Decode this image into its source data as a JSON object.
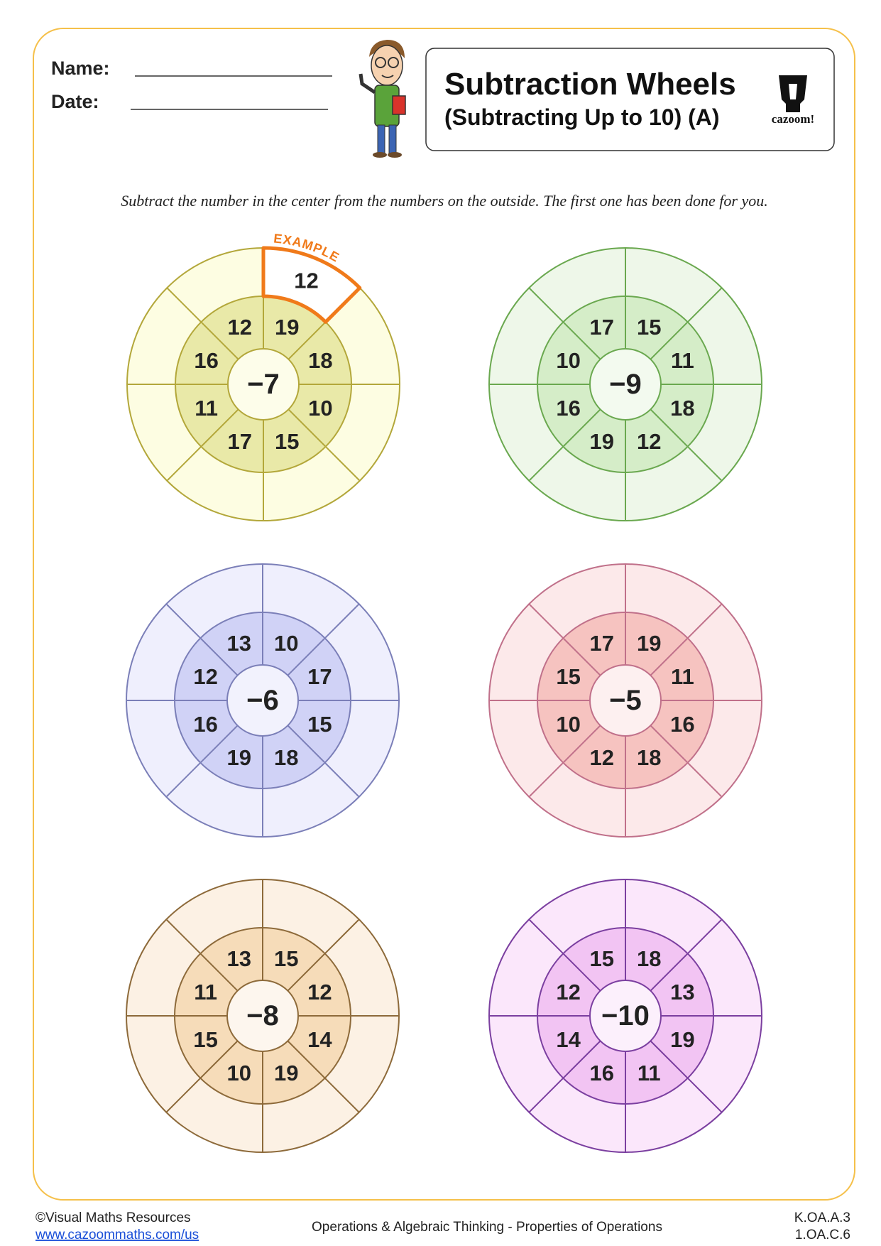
{
  "header": {
    "name_label": "Name:",
    "date_label": "Date:",
    "title": "Subtraction Wheels",
    "subtitle": "(Subtracting Up to 10) (A)",
    "logo": "cazoom!"
  },
  "instructions": "Subtract the number in the center from the numbers on the outside. The first one has been done for you.",
  "wheels": [
    {
      "center": "−7",
      "inner": [
        19,
        18,
        10,
        15,
        17,
        11,
        16,
        12
      ],
      "example": {
        "label": "EXAMPLE",
        "answer": 12
      }
    },
    {
      "center": "−9",
      "inner": [
        15,
        11,
        18,
        12,
        19,
        16,
        10,
        17
      ]
    },
    {
      "center": "−6",
      "inner": [
        10,
        17,
        15,
        18,
        19,
        16,
        12,
        13
      ]
    },
    {
      "center": "−5",
      "inner": [
        19,
        11,
        16,
        18,
        12,
        10,
        15,
        17
      ]
    },
    {
      "center": "−8",
      "inner": [
        15,
        12,
        14,
        19,
        10,
        15,
        11,
        13
      ]
    },
    {
      "center": "−10",
      "inner": [
        18,
        13,
        19,
        11,
        16,
        14,
        12,
        15
      ]
    }
  ],
  "footer": {
    "copyright": "©Visual Maths Resources",
    "url": "www.cazoommaths.com/us",
    "topic": "Operations & Algebraic Thinking - Properties of Operations",
    "codes": [
      "K.OA.A.3",
      "1.OA.C.6"
    ]
  }
}
